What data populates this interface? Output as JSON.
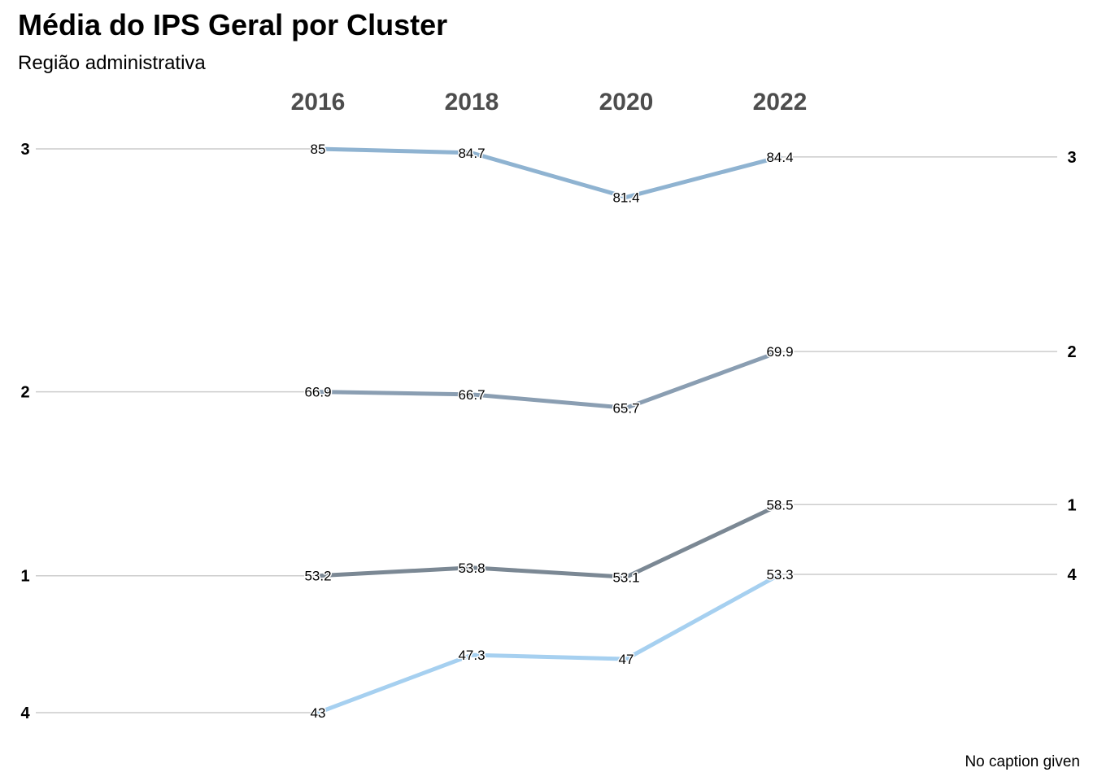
{
  "chart_data": {
    "type": "line",
    "title": "Média do IPS Geral por Cluster",
    "subtitle": "Região administrativa",
    "caption": "No caption given",
    "x": [
      "2016",
      "2018",
      "2020",
      "2022"
    ],
    "ylim": [
      43,
      85
    ],
    "grid": false,
    "legend": "none",
    "series": [
      {
        "name": "3",
        "values": [
          85,
          84.7,
          81.4,
          84.4
        ],
        "color": "#8fb3d1"
      },
      {
        "name": "2",
        "values": [
          66.9,
          66.7,
          65.7,
          69.9
        ],
        "color": "#8a9eb2"
      },
      {
        "name": "1",
        "values": [
          53.2,
          53.8,
          53.1,
          58.5
        ],
        "color": "#7b8894"
      },
      {
        "name": "4",
        "values": [
          43,
          47.3,
          47,
          53.3
        ],
        "color": "#a6d0f0"
      }
    ]
  }
}
